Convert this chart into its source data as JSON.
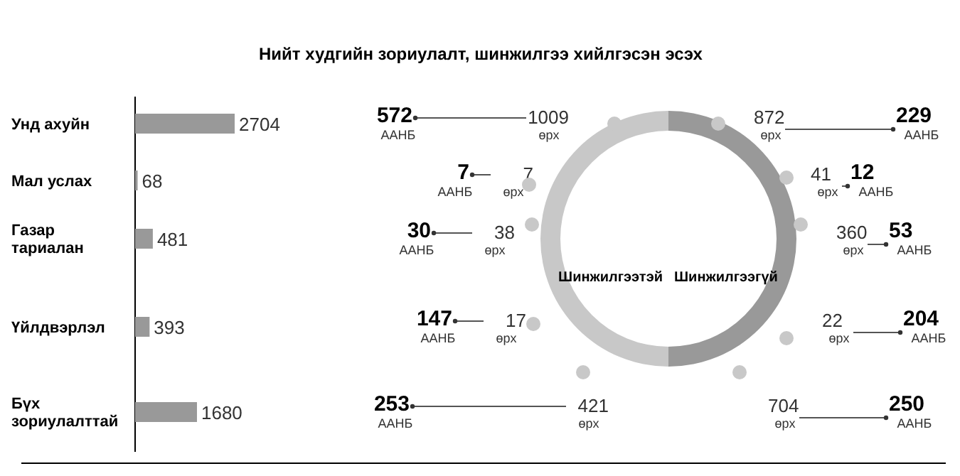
{
  "chart_data": [
    {
      "type": "bar",
      "orientation": "horizontal",
      "categories": [
        "Унд ахуйн",
        "Мал услах",
        "Газар тариалан",
        "Үйлдвэрлэл",
        "Бүх зориулалттай"
      ],
      "values": [
        2704,
        68,
        481,
        393,
        1680
      ],
      "color": "#999999",
      "data_labels": true
    },
    {
      "type": "donut",
      "categories": [
        "Шинжилгээтэй",
        "Шинжилгээгүй"
      ],
      "values": [
        50,
        50
      ],
      "colors": [
        "#c8c8c8",
        "#999999"
      ]
    },
    {
      "type": "other",
      "title": "Нийт худгийн зориулалт, шинжилгээ хийлгэсэн эсэх",
      "annotations": [
        "572",
        "ААНБ",
        "1009",
        "өрх",
        "872",
        "өрх",
        "229",
        "ААНБ",
        "7",
        "ААНБ",
        "7",
        "өрх",
        "41",
        "өрх",
        "12",
        "ААНБ",
        "30",
        "ААНБ",
        "38",
        "өрх",
        "360",
        "өрх",
        "53",
        "ААНБ",
        "147",
        "ААНБ",
        "17",
        "өрх",
        "22",
        "өрх",
        "204",
        "ААНБ",
        "253",
        "ААНБ",
        "421",
        "өрх",
        "704",
        "өрх",
        "250",
        "ААНБ"
      ]
    }
  ]
}
